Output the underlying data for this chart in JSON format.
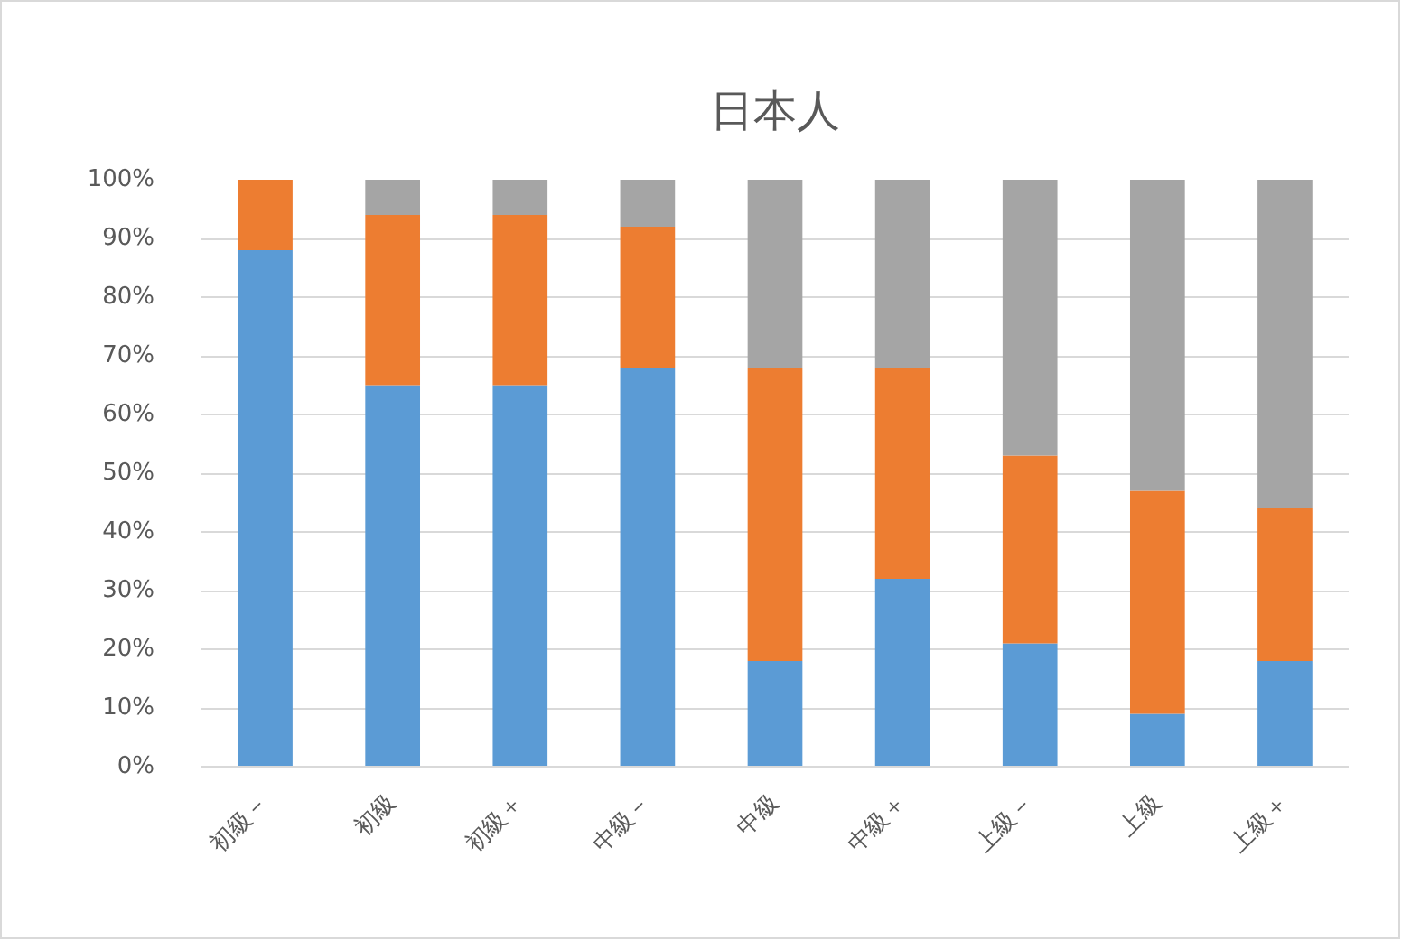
{
  "chart_data": {
    "type": "bar",
    "title": "日本人",
    "stacked": true,
    "categories": [
      "初級－",
      "初級",
      "初級＋",
      "中級－",
      "中級",
      "中級＋",
      "上級－",
      "上級",
      "上級＋"
    ],
    "series": [
      {
        "color": "#5b9bd5",
        "values": [
          88,
          65,
          65,
          68,
          18,
          32,
          21,
          9,
          18
        ]
      },
      {
        "color": "#ed7d31",
        "values": [
          12,
          29,
          29,
          24,
          50,
          36,
          32,
          38,
          26
        ]
      },
      {
        "color": "#a5a5a5",
        "values": [
          0,
          6,
          6,
          8,
          32,
          32,
          47,
          53,
          56
        ]
      }
    ],
    "ylim": [
      0,
      100
    ],
    "yticks": [
      {
        "value": 0,
        "label": "0%"
      },
      {
        "value": 10,
        "label": "10%"
      },
      {
        "value": 20,
        "label": "20%"
      },
      {
        "value": 30,
        "label": "30%"
      },
      {
        "value": 40,
        "label": "40%"
      },
      {
        "value": 50,
        "label": "50%"
      },
      {
        "value": 60,
        "label": "60%"
      },
      {
        "value": 70,
        "label": "70%"
      },
      {
        "value": 80,
        "label": "80%"
      },
      {
        "value": 90,
        "label": "90%"
      },
      {
        "value": 100,
        "label": "100%"
      }
    ],
    "grid": "y"
  }
}
